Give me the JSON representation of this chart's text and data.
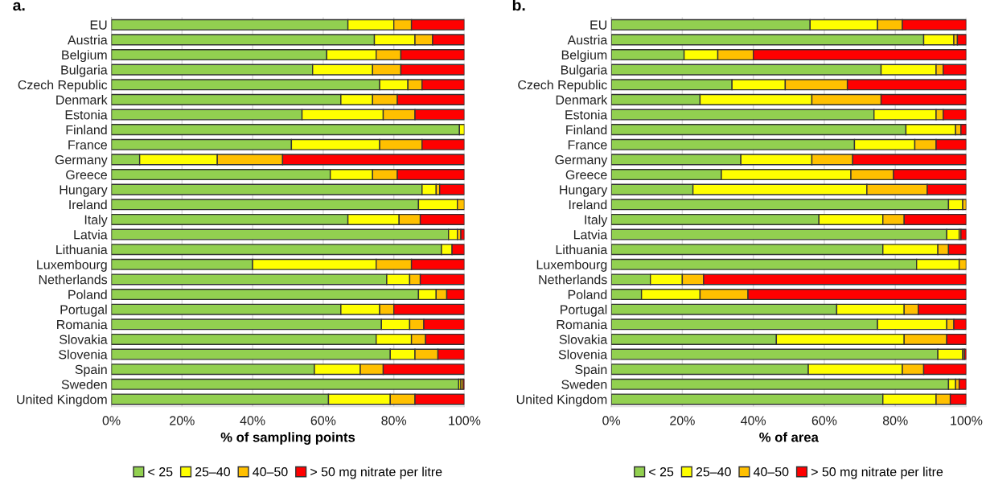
{
  "chart_data": [
    {
      "type": "bar",
      "title": "a.",
      "orientation": "horizontal",
      "stacked": true,
      "xlabel": "% of sampling points",
      "categories": [
        "EU",
        "Austria",
        "Belgium",
        "Bulgaria",
        "Czech Republic",
        "Denmark",
        "Estonia",
        "Finland",
        "France",
        "Germany",
        "Greece",
        "Hungary",
        "Ireland",
        "Italy",
        "Latvia",
        "Lithuania",
        "Luxembourg",
        "Netherlands",
        "Poland",
        "Portugal",
        "Romania",
        "Slovakia",
        "Slovenia",
        "Spain",
        "Sweden",
        "United Kingdom"
      ],
      "series": [
        {
          "name": "< 25",
          "color": "#92d050",
          "values": [
            67,
            74.5,
            61,
            57,
            76,
            65,
            54,
            98.6,
            51,
            8,
            62,
            88,
            87,
            67,
            95.5,
            93.5,
            40,
            78,
            87,
            65,
            76.5,
            75,
            79,
            57.5,
            98.4,
            61.5
          ]
        },
        {
          "name": "25–40",
          "color": "#ffff00",
          "values": [
            13,
            11.5,
            14,
            17,
            8,
            9,
            23,
            1.4,
            25,
            22,
            12,
            4,
            11,
            14.5,
            2.5,
            3,
            35,
            6.5,
            5,
            11,
            8,
            10,
            7,
            13,
            0.6,
            17.5
          ]
        },
        {
          "name": "40–50",
          "color": "#ffc000",
          "values": [
            5,
            5,
            7,
            8,
            4,
            7,
            9,
            null,
            12,
            18.5,
            7,
            1,
            2,
            6,
            1,
            null,
            10,
            3,
            3,
            4,
            4,
            4,
            6.5,
            6.5,
            0.6,
            7
          ]
        },
        {
          "name": "> 50 mg nitrate per litre",
          "color": "#ff0000",
          "values": [
            15,
            9,
            18,
            18,
            12,
            19,
            14,
            null,
            12,
            51.5,
            19,
            7,
            null,
            12.5,
            1,
            3.5,
            15,
            12.5,
            5,
            20,
            11.5,
            11,
            7.5,
            23,
            0.4,
            14
          ]
        }
      ],
      "xlim": [
        0,
        100
      ],
      "xticks": [
        {
          "value": 0,
          "label": "0%"
        },
        {
          "value": 20,
          "label": "20%"
        },
        {
          "value": 40,
          "label": "40%"
        },
        {
          "value": 60,
          "label": "60%"
        },
        {
          "value": 80,
          "label": "80%"
        },
        {
          "value": 100,
          "label": "100%"
        }
      ],
      "grid": "x",
      "legend": "bottom"
    },
    {
      "type": "bar",
      "title": "b.",
      "orientation": "horizontal",
      "stacked": true,
      "xlabel": "% of area",
      "categories": [
        "EU",
        "Austria",
        "Belgium",
        "Bulgaria",
        "Czech Republic",
        "Denmark",
        "Estonia",
        "Finland",
        "France",
        "Germany",
        "Greece",
        "Hungary",
        "Ireland",
        "Italy",
        "Latvia",
        "Lithuania",
        "Luxembourg",
        "Netherlands",
        "Poland",
        "Portugal",
        "Romania",
        "Slovakia",
        "Slovenia",
        "Spain",
        "Sweden",
        "United Kingdom"
      ],
      "series": [
        {
          "name": "< 25",
          "color": "#92d050",
          "values": [
            56,
            88,
            20.5,
            76,
            34,
            25,
            74,
            83,
            68.5,
            36.5,
            31,
            23,
            95,
            58.5,
            94.5,
            76.5,
            86,
            11,
            8.5,
            63.5,
            75,
            46.5,
            92,
            55.5,
            95,
            76.5
          ]
        },
        {
          "name": "25–40",
          "color": "#ffff00",
          "values": [
            19,
            8.5,
            9.5,
            15.5,
            15,
            31.5,
            17.5,
            14,
            17,
            20,
            36.5,
            49,
            4,
            18,
            3.5,
            15.5,
            12,
            9,
            16.5,
            19,
            19.5,
            36,
            7,
            26.5,
            2,
            15
          ]
        },
        {
          "name": "40–50",
          "color": "#ffc000",
          "values": [
            7,
            1,
            10,
            2,
            17.5,
            19.5,
            2,
            1.5,
            6,
            11.5,
            12,
            17,
            1,
            6,
            0.5,
            3,
            2,
            6,
            13.5,
            4,
            2,
            12,
            0.5,
            6,
            1,
            4
          ]
        },
        {
          "name": "> 50 mg nitrate per litre",
          "color": "#ff0000",
          "values": [
            18,
            2.5,
            60,
            6.5,
            33.5,
            24,
            6.5,
            1.5,
            8.5,
            32,
            20.5,
            11,
            null,
            17.5,
            1.5,
            5,
            null,
            74,
            61.5,
            13.5,
            3.5,
            5.5,
            0.5,
            12,
            2,
            4.5
          ]
        }
      ],
      "xlim": [
        0,
        100
      ],
      "xticks": [
        {
          "value": 0,
          "label": "0%"
        },
        {
          "value": 20,
          "label": "20%"
        },
        {
          "value": 40,
          "label": "40%"
        },
        {
          "value": 60,
          "label": "60%"
        },
        {
          "value": 80,
          "label": "80%"
        },
        {
          "value": 100,
          "label": "100%"
        }
      ],
      "grid": "x",
      "legend": "bottom"
    }
  ]
}
